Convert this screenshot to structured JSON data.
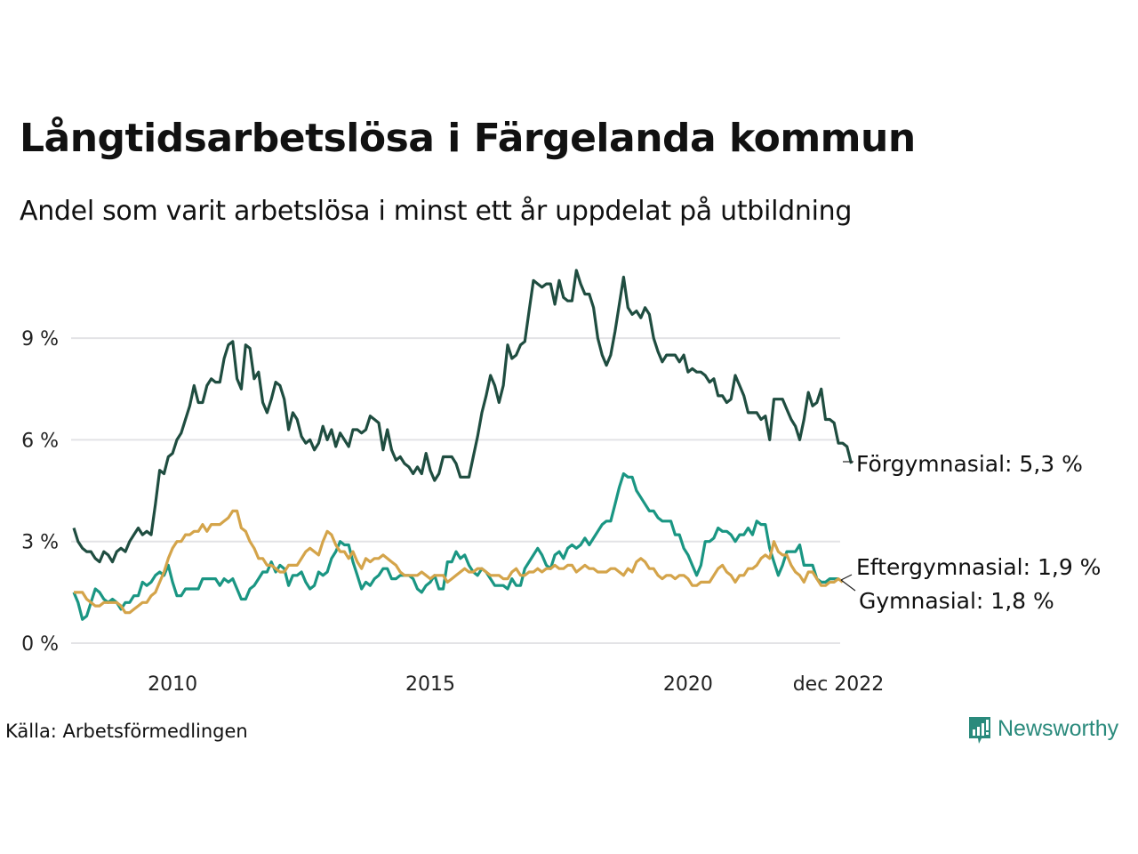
{
  "header": {
    "title": "Långtidsarbetslösa i Färgelanda kommun",
    "subtitle": "Andel som varit arbetslösa i minst ett år uppdelat på utbildning"
  },
  "footer": {
    "source": "Källa: Arbetsförmedlingen",
    "brand": "Newsworthy",
    "brand_icon": "bar-chart-speech-bubble-icon"
  },
  "chart_data": {
    "type": "line",
    "title": "Långtidsarbetslösa i Färgelanda kommun",
    "subtitle": "Andel som varit arbetslösa i minst ett år uppdelat på utbildning",
    "xlabel": "",
    "ylabel": "",
    "x_start": "2008-02",
    "x_end": "2022-12",
    "x_frequency": "monthly",
    "ylim": [
      0,
      11
    ],
    "grid": true,
    "y_ticks": [
      {
        "value": 0,
        "label": "0 %"
      },
      {
        "value": 3,
        "label": "3 %"
      },
      {
        "value": 6,
        "label": "6 %"
      },
      {
        "value": 9,
        "label": "9 %"
      }
    ],
    "x_ticks": [
      {
        "value": "2010-01",
        "label": "2010"
      },
      {
        "value": "2015-01",
        "label": "2015"
      },
      {
        "value": "2020-01",
        "label": "2020"
      },
      {
        "value": "2022-12",
        "label": "dec 2022"
      }
    ],
    "legend": "direct-labels-right",
    "series": [
      {
        "name": "Förgymnasial",
        "end_label": "Förgymnasial: 5,3 %",
        "color": "#1f4d40",
        "values": [
          3.4,
          3.0,
          2.8,
          2.7,
          2.7,
          2.5,
          2.4,
          2.7,
          2.6,
          2.4,
          2.7,
          2.8,
          2.7,
          3.0,
          3.2,
          3.4,
          3.2,
          3.3,
          3.2,
          4.1,
          5.1,
          5.0,
          5.5,
          5.6,
          6.0,
          6.2,
          6.6,
          7.0,
          7.6,
          7.1,
          7.1,
          7.6,
          7.8,
          7.7,
          7.7,
          8.4,
          8.8,
          8.9,
          7.8,
          7.5,
          8.8,
          8.7,
          7.8,
          8.0,
          7.1,
          6.8,
          7.2,
          7.7,
          7.6,
          7.2,
          6.3,
          6.8,
          6.6,
          6.1,
          5.9,
          6.0,
          5.7,
          5.9,
          6.4,
          6.0,
          6.3,
          5.8,
          6.2,
          6.0,
          5.8,
          6.3,
          6.3,
          6.2,
          6.3,
          6.7,
          6.6,
          6.5,
          5.7,
          6.3,
          5.7,
          5.4,
          5.5,
          5.3,
          5.2,
          5.0,
          5.2,
          5.0,
          5.6,
          5.1,
          4.8,
          5.0,
          5.5,
          5.5,
          5.5,
          5.3,
          4.9,
          4.9,
          4.9,
          5.5,
          6.1,
          6.8,
          7.3,
          7.9,
          7.6,
          7.1,
          7.6,
          8.8,
          8.4,
          8.5,
          8.8,
          8.9,
          9.8,
          10.7,
          10.6,
          10.5,
          10.6,
          10.6,
          10.0,
          10.7,
          10.2,
          10.1,
          10.1,
          11.0,
          10.6,
          10.3,
          10.3,
          9.9,
          9.0,
          8.5,
          8.2,
          8.5,
          9.2,
          10.0,
          10.8,
          9.9,
          9.7,
          9.8,
          9.6,
          9.9,
          9.7,
          9.0,
          8.6,
          8.3,
          8.5,
          8.5,
          8.5,
          8.3,
          8.5,
          8.0,
          8.1,
          8.0,
          8.0,
          7.9,
          7.7,
          7.8,
          7.3,
          7.3,
          7.1,
          7.2,
          7.9,
          7.6,
          7.3,
          6.8,
          6.8,
          6.8,
          6.6,
          6.7,
          6.0,
          7.2,
          7.2,
          7.2,
          6.9,
          6.6,
          6.4,
          6.0,
          6.6,
          7.4,
          7.0,
          7.1,
          7.5,
          6.6,
          6.6,
          6.5,
          5.9,
          5.9,
          5.8,
          5.3
        ]
      },
      {
        "name": "Eftergymnasial",
        "end_label": "Eftergymnasial: 1,9 %",
        "color": "#1a9683",
        "values": [
          1.5,
          1.2,
          0.7,
          0.8,
          1.2,
          1.6,
          1.5,
          1.3,
          1.2,
          1.3,
          1.2,
          1.0,
          1.2,
          1.2,
          1.4,
          1.4,
          1.8,
          1.7,
          1.8,
          2.0,
          2.1,
          2.0,
          2.3,
          1.8,
          1.4,
          1.4,
          1.6,
          1.6,
          1.6,
          1.6,
          1.9,
          1.9,
          1.9,
          1.9,
          1.7,
          1.9,
          1.8,
          1.9,
          1.6,
          1.3,
          1.3,
          1.6,
          1.7,
          1.9,
          2.1,
          2.1,
          2.4,
          2.1,
          2.3,
          2.2,
          1.7,
          2.0,
          2.0,
          2.1,
          1.8,
          1.6,
          1.7,
          2.1,
          2.0,
          2.1,
          2.5,
          2.7,
          3.0,
          2.9,
          2.9,
          2.4,
          2.0,
          1.6,
          1.8,
          1.7,
          1.9,
          2.0,
          2.2,
          2.2,
          1.9,
          1.9,
          2.0,
          2.0,
          2.0,
          1.9,
          1.6,
          1.5,
          1.7,
          1.8,
          2.0,
          1.6,
          1.6,
          2.4,
          2.4,
          2.7,
          2.5,
          2.6,
          2.3,
          2.1,
          2.0,
          2.2,
          2.1,
          1.9,
          1.7,
          1.7,
          1.7,
          1.6,
          1.9,
          1.7,
          1.7,
          2.2,
          2.4,
          2.6,
          2.8,
          2.6,
          2.3,
          2.2,
          2.6,
          2.7,
          2.5,
          2.8,
          2.9,
          2.8,
          2.9,
          3.1,
          2.9,
          3.1,
          3.3,
          3.5,
          3.6,
          3.6,
          4.1,
          4.6,
          5.0,
          4.9,
          4.9,
          4.5,
          4.3,
          4.1,
          3.9,
          3.9,
          3.7,
          3.6,
          3.6,
          3.6,
          3.2,
          3.2,
          2.8,
          2.6,
          2.3,
          2.0,
          2.3,
          3.0,
          3.0,
          3.1,
          3.4,
          3.3,
          3.3,
          3.2,
          3.0,
          3.2,
          3.2,
          3.4,
          3.2,
          3.6,
          3.5,
          3.5,
          2.8,
          2.4,
          2.0,
          2.3,
          2.7,
          2.7,
          2.7,
          2.9,
          2.3,
          2.3,
          2.3,
          1.9,
          1.8,
          1.8,
          1.9,
          1.9,
          1.9
        ]
      },
      {
        "name": "Gymnasial",
        "end_label": "Gymnasial: 1,8 %",
        "color": "#d4a44a",
        "values": [
          1.5,
          1.5,
          1.5,
          1.3,
          1.2,
          1.1,
          1.1,
          1.2,
          1.2,
          1.2,
          1.2,
          1.1,
          0.9,
          0.9,
          1.0,
          1.1,
          1.2,
          1.2,
          1.4,
          1.5,
          1.8,
          2.1,
          2.5,
          2.8,
          3.0,
          3.0,
          3.2,
          3.2,
          3.3,
          3.3,
          3.5,
          3.3,
          3.5,
          3.5,
          3.5,
          3.6,
          3.7,
          3.9,
          3.9,
          3.4,
          3.3,
          3.0,
          2.8,
          2.5,
          2.5,
          2.3,
          2.3,
          2.2,
          2.1,
          2.1,
          2.3,
          2.3,
          2.3,
          2.5,
          2.7,
          2.8,
          2.7,
          2.6,
          3.0,
          3.3,
          3.2,
          2.9,
          2.7,
          2.7,
          2.5,
          2.7,
          2.4,
          2.2,
          2.5,
          2.4,
          2.5,
          2.5,
          2.6,
          2.5,
          2.4,
          2.3,
          2.1,
          2.0,
          2.0,
          2.0,
          2.0,
          2.1,
          2.0,
          1.9,
          2.0,
          2.0,
          2.0,
          1.8,
          1.9,
          2.0,
          2.1,
          2.2,
          2.1,
          2.1,
          2.2,
          2.2,
          2.1,
          2.0,
          2.0,
          2.0,
          1.9,
          1.9,
          2.1,
          2.2,
          2.0,
          2.0,
          2.1,
          2.1,
          2.2,
          2.1,
          2.2,
          2.2,
          2.3,
          2.2,
          2.2,
          2.3,
          2.3,
          2.1,
          2.2,
          2.3,
          2.2,
          2.2,
          2.1,
          2.1,
          2.1,
          2.2,
          2.2,
          2.1,
          2.0,
          2.2,
          2.1,
          2.4,
          2.5,
          2.4,
          2.2,
          2.2,
          2.0,
          1.9,
          2.0,
          2.0,
          1.9,
          2.0,
          2.0,
          1.9,
          1.7,
          1.7,
          1.8,
          1.8,
          1.8,
          2.0,
          2.2,
          2.3,
          2.1,
          2.0,
          1.8,
          2.0,
          2.0,
          2.2,
          2.2,
          2.3,
          2.5,
          2.6,
          2.5,
          3.0,
          2.7,
          2.6,
          2.6,
          2.3,
          2.1,
          2.0,
          1.8,
          2.1,
          2.1,
          1.9,
          1.7,
          1.7,
          1.8,
          1.8,
          1.9,
          1.8
        ]
      }
    ]
  }
}
